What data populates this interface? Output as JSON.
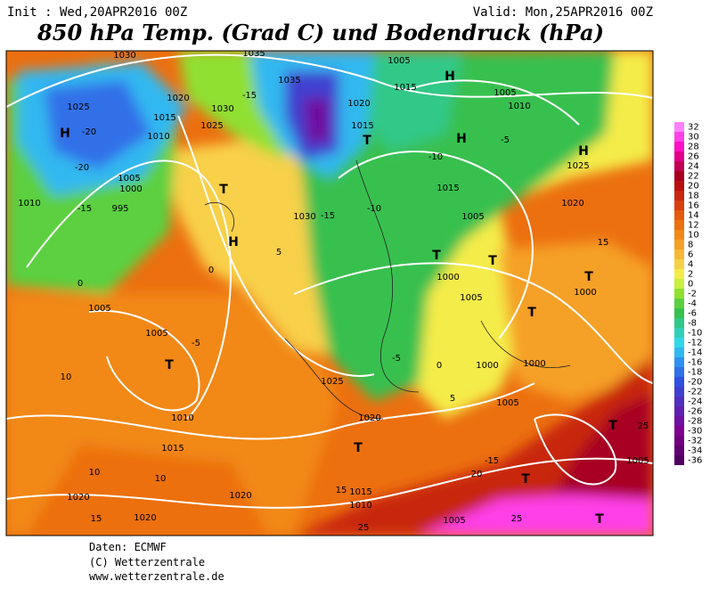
{
  "header": {
    "init": "Init : Wed,20APR2016 00Z",
    "valid": "Valid: Mon,25APR2016 00Z",
    "title": "850 hPa Temp. (Grad C) und Bodendruck (hPa)"
  },
  "colorbar": {
    "levels": [
      32,
      30,
      28,
      26,
      24,
      22,
      20,
      18,
      16,
      14,
      12,
      10,
      8,
      6,
      4,
      2,
      0,
      -2,
      -4,
      -6,
      -8,
      -10,
      -12,
      -14,
      -16,
      -18,
      -20,
      -22,
      -24,
      -26,
      -28,
      -30,
      -32,
      -34,
      -36
    ],
    "colors": [
      "#ff80ff",
      "#ff40e8",
      "#ff10c8",
      "#e0008a",
      "#c00050",
      "#a80020",
      "#b81010",
      "#c82810",
      "#d84010",
      "#e45a10",
      "#ec7010",
      "#f28818",
      "#f5a028",
      "#f7b838",
      "#f8d048",
      "#f4ec48",
      "#c8f040",
      "#90e030",
      "#5cd040",
      "#38c050",
      "#30c888",
      "#30d0b8",
      "#30d8e8",
      "#30b8f0",
      "#3090f0",
      "#3070e8",
      "#3050e0",
      "#4040d0",
      "#5030c0",
      "#6020b0",
      "#7010a0",
      "#800090",
      "#700080",
      "#600070",
      "#500060"
    ]
  },
  "map_labels": [
    "1030",
    "1035",
    "1035",
    "1020",
    "1025",
    "1015",
    "H",
    "-20",
    "1010",
    "-15",
    "1030",
    "1025",
    "1020",
    "1015",
    "T",
    "1005",
    "1015",
    "H",
    "H",
    "1005",
    "1010",
    "-5",
    "H",
    "1025",
    "-20",
    "1005",
    "1000",
    "-15",
    "995",
    "1010",
    "T",
    "H",
    "1030",
    "-15",
    "-10",
    "-10",
    "1015",
    "1005",
    "1020",
    "T",
    "T",
    "1000",
    "1005",
    "T",
    "T",
    "1000",
    "1005",
    "1005",
    "T",
    "-5",
    "10",
    "1025",
    "1010",
    "1015",
    "1020",
    "T",
    "1000",
    "1000",
    "1005",
    "T",
    "25",
    "1005",
    "T",
    "T",
    "1005",
    "25",
    "25",
    "1020",
    "1020",
    "1020",
    "15",
    "10",
    "10",
    "1010",
    "1015",
    "15",
    "20",
    "-15",
    "0",
    "0",
    "5",
    "-5",
    "5",
    "0",
    "15"
  ],
  "footer": {
    "source": "Daten: ECMWF",
    "copyright": "(C) Wetterzentrale",
    "url": "www.wetterzentrale.de"
  }
}
